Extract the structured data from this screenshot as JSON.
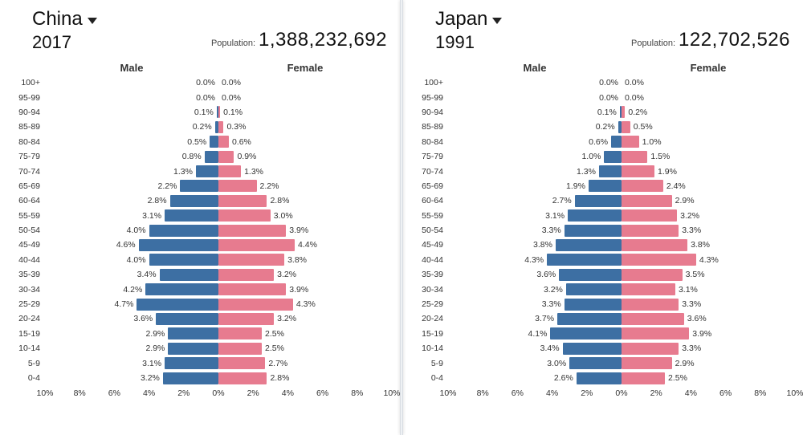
{
  "divider_color": "#d9dde3",
  "axis": {
    "max_pct": 10,
    "ticks": [
      10,
      8,
      6,
      4,
      2,
      0,
      2,
      4,
      6,
      8,
      10
    ],
    "tick_step": 2,
    "grid_color": "#e6e7ea"
  },
  "colors": {
    "male": "#3d6fa3",
    "female": "#e77b8f",
    "text": "#333333",
    "bg": "#ffffff"
  },
  "age_labels": [
    "100+",
    "95-99",
    "90-94",
    "85-89",
    "80-84",
    "75-79",
    "70-74",
    "65-69",
    "60-64",
    "55-59",
    "50-54",
    "45-49",
    "40-44",
    "35-39",
    "30-34",
    "25-29",
    "20-24",
    "15-19",
    "10-14",
    "5-9",
    "0-4"
  ],
  "panels": [
    {
      "country": "China",
      "year": "2017",
      "population_label": "Population:",
      "population": "1,388,232,692",
      "male_label": "Male",
      "female_label": "Female",
      "male": [
        0.0,
        0.0,
        0.1,
        0.2,
        0.5,
        0.8,
        1.3,
        2.2,
        2.8,
        3.1,
        4.0,
        4.6,
        4.0,
        3.4,
        4.2,
        4.7,
        3.6,
        2.9,
        2.9,
        3.1,
        3.2
      ],
      "female": [
        0.0,
        0.0,
        0.1,
        0.3,
        0.6,
        0.9,
        1.3,
        2.2,
        2.8,
        3.0,
        3.9,
        4.4,
        3.8,
        3.2,
        3.9,
        4.3,
        3.2,
        2.5,
        2.5,
        2.7,
        2.8
      ]
    },
    {
      "country": "Japan",
      "year": "1991",
      "population_label": "Population:",
      "population": "122,702,526",
      "male_label": "Male",
      "female_label": "Female",
      "male": [
        0.0,
        0.0,
        0.1,
        0.2,
        0.6,
        1.0,
        1.3,
        1.9,
        2.7,
        3.1,
        3.3,
        3.8,
        4.3,
        3.6,
        3.2,
        3.3,
        3.7,
        4.1,
        3.4,
        3.0,
        2.6
      ],
      "female": [
        0.0,
        0.0,
        0.2,
        0.5,
        1.0,
        1.5,
        1.9,
        2.4,
        2.9,
        3.2,
        3.3,
        3.8,
        4.3,
        3.5,
        3.1,
        3.3,
        3.6,
        3.9,
        3.3,
        2.9,
        2.5
      ]
    }
  ]
}
